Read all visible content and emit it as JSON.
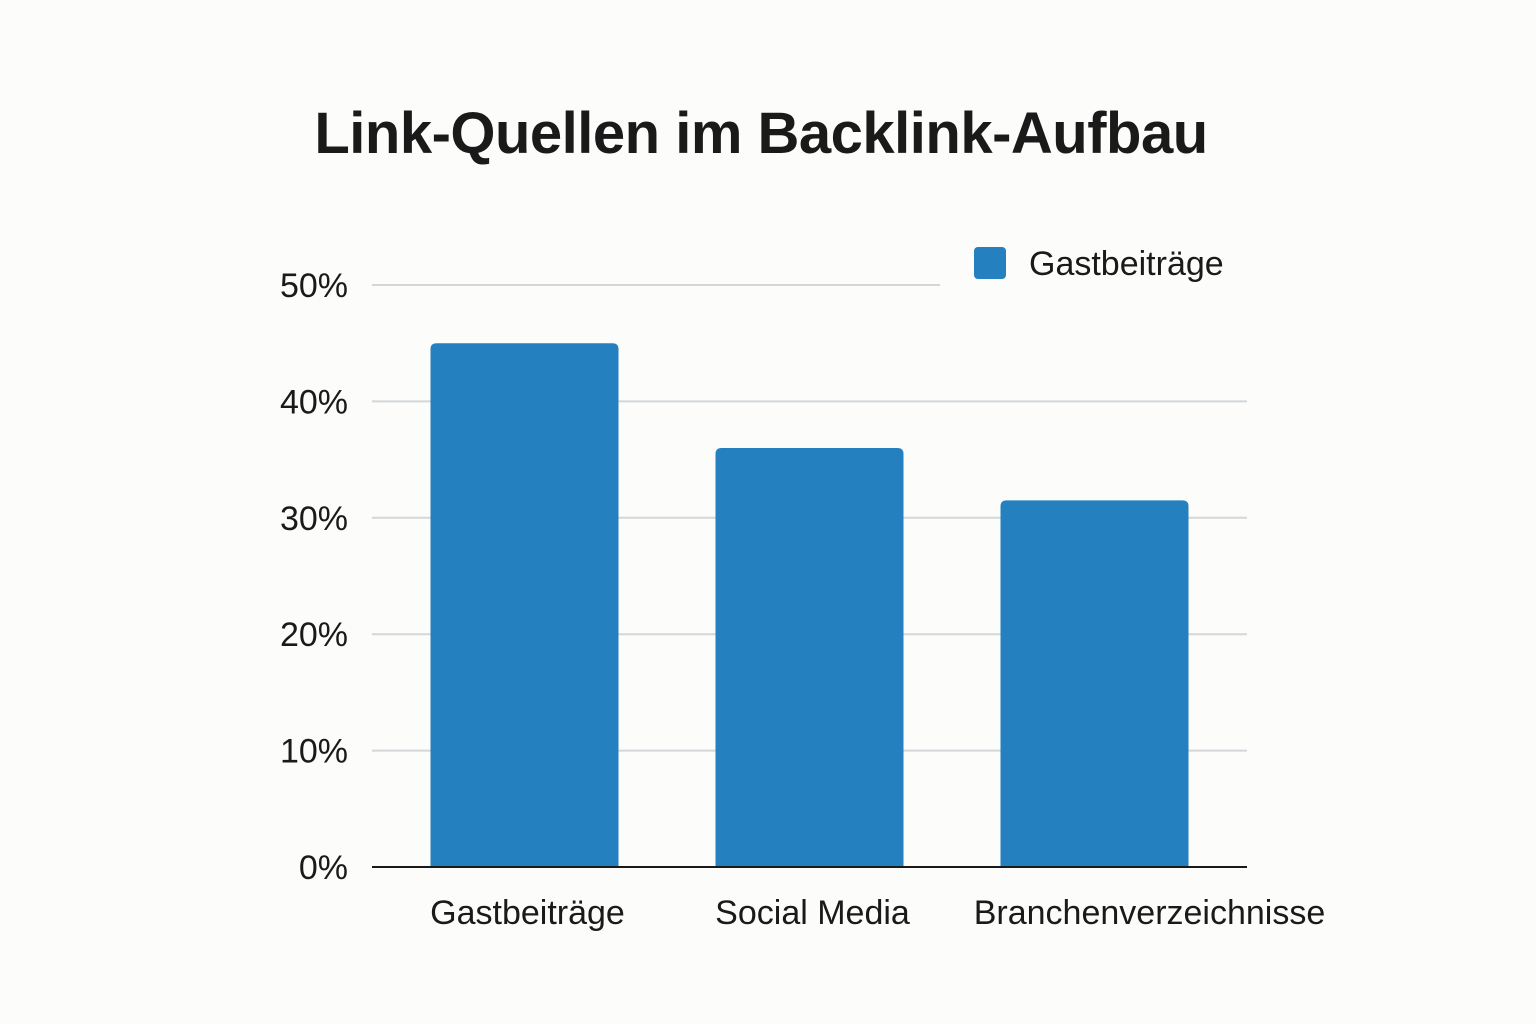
{
  "chart_data": {
    "type": "bar",
    "title": "Link-Quellen im Backlink-Aufbau",
    "categories": [
      "Gastbeiträge",
      "Social Media",
      "Branchenverzeichnisse"
    ],
    "series": [
      {
        "name": "Gastbeiträge",
        "values": [
          45,
          36,
          31.5
        ],
        "color": "#2580bf"
      }
    ],
    "yticks": [
      "0%",
      "10%",
      "20%",
      "30%",
      "40%",
      "50%"
    ],
    "ylim": [
      0,
      50
    ],
    "grid": true,
    "legend": "top-right"
  }
}
